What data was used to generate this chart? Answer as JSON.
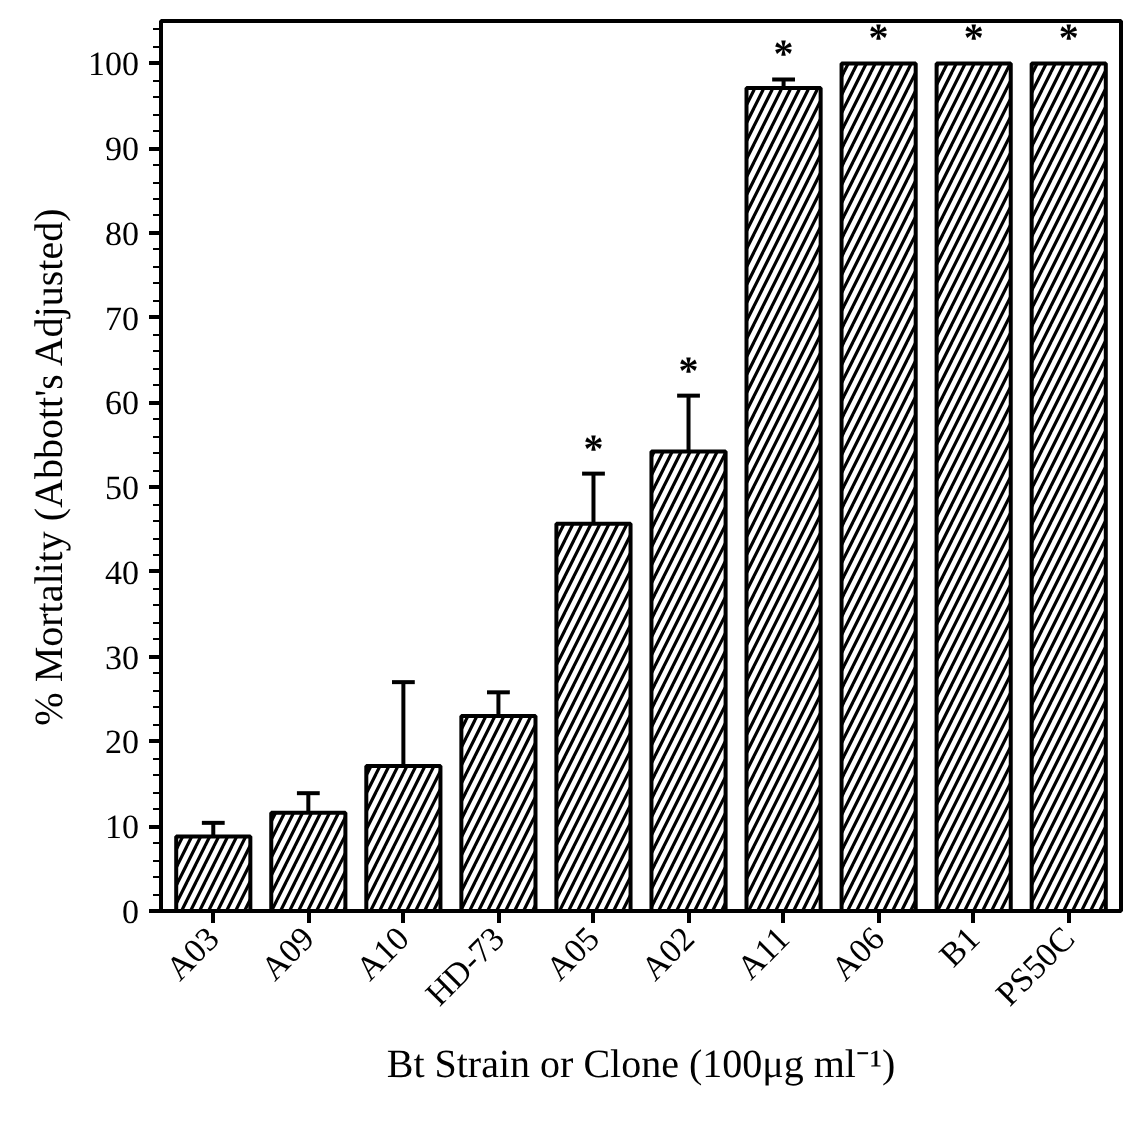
{
  "chart_data": {
    "type": "bar",
    "xlabel": "Bt Strain or Clone (100μg ml⁻¹)",
    "ylabel": "% Mortality (Abbott's Adjusted)",
    "categories": [
      "A03",
      "A09",
      "A10",
      "HD-73",
      "A05",
      "A02",
      "A11",
      "A06",
      "B1",
      "PS50C"
    ],
    "values": [
      8.8,
      11.6,
      17.1,
      23.0,
      45.7,
      54.2,
      97.1,
      100,
      100,
      100
    ],
    "errors": [
      [
        8.8,
        10.4
      ],
      [
        11.6,
        13.9
      ],
      [
        17.1,
        27.0
      ],
      [
        23.0,
        25.8
      ],
      [
        45.7,
        51.6
      ],
      [
        54.2,
        60.8
      ],
      [
        97.1,
        98.1
      ],
      null,
      null,
      null
    ],
    "color": "#000000",
    "ylim": [
      0,
      105
    ],
    "yticks": [
      0,
      10,
      20,
      30,
      40,
      50,
      60,
      70,
      80,
      90,
      100
    ],
    "grid": false,
    "annotations": [
      {
        "text": "*",
        "x": "A05",
        "y": 51.6
      },
      {
        "text": "*",
        "x": "A02",
        "y": 60.8
      },
      {
        "text": "*",
        "x": "A11",
        "y": 98.1
      },
      {
        "text": "*",
        "x": "A06",
        "y": 100
      },
      {
        "text": "*",
        "x": "B1",
        "y": 100
      },
      {
        "text": "*",
        "x": "PS50C",
        "y": 100
      }
    ]
  }
}
